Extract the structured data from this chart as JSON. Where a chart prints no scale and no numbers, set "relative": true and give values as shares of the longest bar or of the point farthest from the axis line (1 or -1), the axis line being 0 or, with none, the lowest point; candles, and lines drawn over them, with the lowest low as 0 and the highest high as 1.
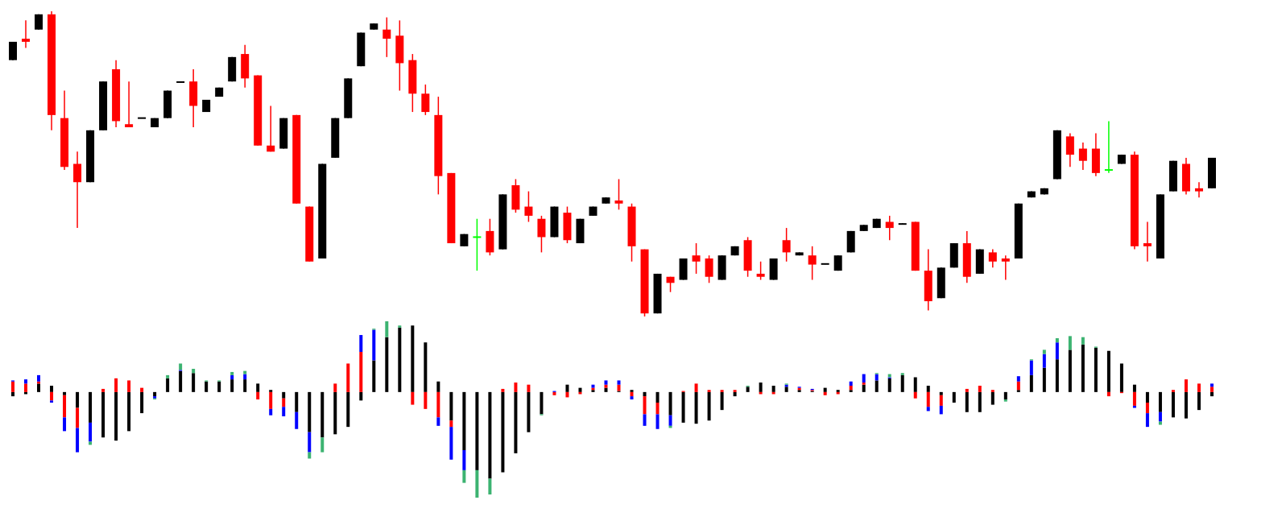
{
  "chart_data": [
    {
      "type": "candlestick",
      "relative": true,
      "categories": [
        null,
        null,
        null,
        null,
        null,
        null,
        null,
        null,
        null,
        null,
        null,
        null,
        null,
        null,
        null,
        null,
        null,
        null,
        null,
        null,
        null,
        null,
        null,
        null,
        null,
        null,
        null,
        null,
        null,
        null,
        null,
        null,
        null,
        null,
        null,
        null,
        null,
        null,
        null,
        null,
        null,
        null,
        null,
        null,
        null,
        null,
        null,
        null,
        null,
        null,
        null,
        null,
        null,
        null,
        null,
        null,
        null,
        null,
        null,
        null,
        null,
        null,
        null,
        null,
        null,
        null,
        null,
        null,
        null,
        null,
        null,
        null,
        null,
        null,
        null,
        null,
        null,
        null,
        null,
        null,
        null,
        null,
        null,
        null,
        null,
        null,
        null,
        null,
        null,
        null,
        null,
        null,
        null,
        null
      ],
      "ohlc": [
        [
          0.84,
          0.9,
          0.84,
          0.9
        ],
        [
          0.91,
          0.97,
          0.88,
          0.9
        ],
        [
          0.94,
          0.99,
          0.94,
          0.99
        ],
        [
          0.99,
          1,
          0.61,
          0.66
        ],
        [
          0.65,
          0.74,
          0.48,
          0.49
        ],
        [
          0.5,
          0.54,
          0.29,
          0.44
        ],
        [
          0.44,
          0.61,
          0.44,
          0.61
        ],
        [
          0.61,
          0.77,
          0.61,
          0.77
        ],
        [
          0.81,
          0.84,
          0.62,
          0.64
        ],
        [
          0.63,
          0.77,
          0.62,
          0.62
        ],
        [
          0.649,
          0.651,
          0.649,
          0.651
        ],
        [
          0.62,
          0.65,
          0.62,
          0.65
        ],
        [
          0.65,
          0.74,
          0.65,
          0.74
        ],
        [
          0.767,
          0.769,
          0.767,
          0.769
        ],
        [
          0.77,
          0.81,
          0.62,
          0.69
        ],
        [
          0.67,
          0.71,
          0.67,
          0.71
        ],
        [
          0.72,
          0.75,
          0.72,
          0.75
        ],
        [
          0.77,
          0.85,
          0.77,
          0.85
        ],
        [
          0.86,
          0.89,
          0.75,
          0.78
        ],
        [
          0.79,
          0.79,
          0.56,
          0.56
        ],
        [
          0.56,
          0.69,
          0.54,
          0.54
        ],
        [
          0.55,
          0.65,
          0.55,
          0.65
        ],
        [
          0.66,
          0.66,
          0.37,
          0.37
        ],
        [
          0.36,
          0.36,
          0.18,
          0.18
        ],
        [
          0.19,
          0.5,
          0.19,
          0.5
        ],
        [
          0.52,
          0.65,
          0.52,
          0.65
        ],
        [
          0.65,
          0.78,
          0.65,
          0.78
        ],
        [
          0.82,
          0.93,
          0.82,
          0.93
        ],
        [
          0.94,
          0.96,
          0.94,
          0.96
        ],
        [
          0.94,
          0.98,
          0.85,
          0.91
        ],
        [
          0.92,
          0.97,
          0.74,
          0.83
        ],
        [
          0.84,
          0.86,
          0.67,
          0.73
        ],
        [
          0.73,
          0.76,
          0.66,
          0.67
        ],
        [
          0.66,
          0.72,
          0.4,
          0.46
        ],
        [
          0.47,
          0.47,
          0.24,
          0.24
        ],
        [
          0.23,
          0.27,
          0.23,
          0.27
        ],
        [
          0.26,
          0.32,
          0.15,
          0.26
        ],
        [
          0.28,
          0.32,
          0.2,
          0.21
        ],
        [
          0.22,
          0.4,
          0.22,
          0.4
        ],
        [
          0.43,
          0.45,
          0.34,
          0.35
        ],
        [
          0.36,
          0.41,
          0.31,
          0.33
        ],
        [
          0.32,
          0.33,
          0.21,
          0.26
        ],
        [
          0.26,
          0.36,
          0.26,
          0.36
        ],
        [
          0.34,
          0.36,
          0.24,
          0.25
        ],
        [
          0.24,
          0.32,
          0.24,
          0.32
        ],
        [
          0.33,
          0.36,
          0.33,
          0.36
        ],
        [
          0.37,
          0.39,
          0.37,
          0.39
        ],
        [
          0.38,
          0.45,
          0.35,
          0.37
        ],
        [
          0.36,
          0.37,
          0.18,
          0.23
        ],
        [
          0.22,
          0.22,
          0,
          0.01
        ],
        [
          0.01,
          0.14,
          0.01,
          0.14
        ],
        [
          0.13,
          0.13,
          0.08,
          0.11
        ],
        [
          0.12,
          0.19,
          0.12,
          0.19
        ],
        [
          0.2,
          0.24,
          0.14,
          0.18
        ],
        [
          0.19,
          0.2,
          0.11,
          0.13
        ],
        [
          0.12,
          0.2,
          0.12,
          0.2
        ],
        [
          0.2,
          0.23,
          0.2,
          0.23
        ],
        [
          0.25,
          0.26,
          0.13,
          0.15
        ],
        [
          0.14,
          0.18,
          0.12,
          0.13
        ],
        [
          0.12,
          0.19,
          0.12,
          0.19
        ],
        [
          0.25,
          0.29,
          0.18,
          0.21
        ],
        [
          0.2,
          0.21,
          0.2,
          0.21
        ],
        [
          0.2,
          0.23,
          0.12,
          0.17
        ],
        [
          0.171,
          0.173,
          0.171,
          0.173
        ],
        [
          0.15,
          0.2,
          0.15,
          0.2
        ],
        [
          0.21,
          0.28,
          0.21,
          0.28
        ],
        [
          0.28,
          0.3,
          0.28,
          0.3
        ],
        [
          0.29,
          0.32,
          0.29,
          0.32
        ],
        [
          0.31,
          0.33,
          0.25,
          0.29
        ],
        [
          0.301,
          0.305,
          0.301,
          0.305
        ],
        [
          0.31,
          0.31,
          0.15,
          0.15
        ],
        [
          0.15,
          0.22,
          0.02,
          0.05
        ],
        [
          0.06,
          0.16,
          0.06,
          0.16
        ],
        [
          0.16,
          0.24,
          0.16,
          0.24
        ],
        [
          0.24,
          0.28,
          0.11,
          0.13
        ],
        [
          0.14,
          0.22,
          0.14,
          0.22
        ],
        [
          0.21,
          0.22,
          0.16,
          0.18
        ],
        [
          0.19,
          0.2,
          0.12,
          0.18
        ],
        [
          0.19,
          0.37,
          0.19,
          0.37
        ],
        [
          0.39,
          0.41,
          0.39,
          0.41
        ],
        [
          0.4,
          0.42,
          0.4,
          0.42
        ],
        [
          0.45,
          0.61,
          0.45,
          0.61
        ],
        [
          0.59,
          0.6,
          0.49,
          0.53
        ],
        [
          0.55,
          0.57,
          0.48,
          0.51
        ],
        [
          0.55,
          0.6,
          0.46,
          0.47
        ],
        [
          0.48,
          0.64,
          0.47,
          0.48
        ],
        [
          0.5,
          0.53,
          0.5,
          0.53
        ],
        [
          0.53,
          0.54,
          0.22,
          0.23
        ],
        [
          0.24,
          0.31,
          0.18,
          0.23
        ],
        [
          0.19,
          0.4,
          0.19,
          0.4
        ],
        [
          0.41,
          0.51,
          0.41,
          0.51
        ],
        [
          0.5,
          0.52,
          0.4,
          0.41
        ],
        [
          0.42,
          0.44,
          0.39,
          0.41
        ],
        [
          0.42,
          0.52,
          0.42,
          0.52
        ]
      ],
      "colors": [
        "#000000",
        "#ff0000",
        "#000000",
        "#ff0000",
        "#ff0000",
        "#ff0000",
        "#000000",
        "#000000",
        "#ff0000",
        "#ff0000",
        "#000000",
        "#000000",
        "#000000",
        "#000000",
        "#ff0000",
        "#000000",
        "#000000",
        "#000000",
        "#ff0000",
        "#ff0000",
        "#ff0000",
        "#000000",
        "#ff0000",
        "#ff0000",
        "#000000",
        "#000000",
        "#000000",
        "#000000",
        "#000000",
        "#ff0000",
        "#ff0000",
        "#ff0000",
        "#ff0000",
        "#ff0000",
        "#ff0000",
        "#000000",
        "#00ff00",
        "#ff0000",
        "#000000",
        "#ff0000",
        "#ff0000",
        "#ff0000",
        "#000000",
        "#ff0000",
        "#000000",
        "#000000",
        "#000000",
        "#ff0000",
        "#ff0000",
        "#ff0000",
        "#000000",
        "#ff0000",
        "#000000",
        "#ff0000",
        "#ff0000",
        "#000000",
        "#000000",
        "#ff0000",
        "#ff0000",
        "#000000",
        "#ff0000",
        "#000000",
        "#ff0000",
        "#000000",
        "#000000",
        "#000000",
        "#000000",
        "#000000",
        "#ff0000",
        "#000000",
        "#ff0000",
        "#ff0000",
        "#000000",
        "#000000",
        "#ff0000",
        "#000000",
        "#ff0000",
        "#ff0000",
        "#000000",
        "#000000",
        "#000000",
        "#000000",
        "#ff0000",
        "#ff0000",
        "#ff0000",
        "#00ff00",
        "#000000",
        "#ff0000",
        "#ff0000",
        "#000000",
        "#000000",
        "#ff0000",
        "#ff0000",
        "#000000"
      ]
    },
    {
      "type": "bar",
      "relative": true,
      "stacked": true,
      "categories": [
        null,
        null,
        null,
        null,
        null,
        null,
        null,
        null,
        null,
        null,
        null,
        null,
        null,
        null,
        null,
        null,
        null,
        null,
        null,
        null,
        null,
        null,
        null,
        null,
        null,
        null,
        null,
        null,
        null,
        null,
        null,
        null,
        null,
        null,
        null,
        null,
        null,
        null,
        null,
        null,
        null,
        null,
        null,
        null,
        null,
        null,
        null,
        null,
        null,
        null,
        null,
        null,
        null,
        null,
        null,
        null,
        null,
        null,
        null,
        null,
        null,
        null,
        null,
        null,
        null,
        null,
        null,
        null,
        null,
        null,
        null,
        null,
        null,
        null,
        null,
        null,
        null,
        null,
        null,
        null,
        null,
        null,
        null,
        null,
        null,
        null,
        null,
        null,
        null,
        null,
        null,
        null,
        null,
        null
      ],
      "series": [
        {
          "color": "#000000",
          "values": [
            -0.04,
            -0.02,
            0.08,
            0.06,
            -0.03,
            -0.15,
            -0.29,
            -0.43,
            -0.46,
            -0.37,
            -0.2,
            -0.04,
            0.13,
            0.2,
            0.18,
            0.1,
            0.1,
            0.12,
            0.12,
            0.08,
            0.02,
            -0.06,
            -0.19,
            -0.38,
            -0.43,
            -0.4,
            -0.33,
            -0.08,
            0.3,
            0.52,
            0.61,
            0.63,
            0.47,
            0.1,
            -0.27,
            -0.55,
            -0.74,
            -0.82,
            -0.76,
            -0.58,
            -0.38,
            -0.21,
            null,
            0.07,
            0.04,
            0.02,
            0.04,
            0.01,
            0.02,
            -0.04,
            -0.1,
            -0.22,
            -0.29,
            -0.3,
            -0.27,
            -0.17,
            -0.04,
            0.05,
            0.09,
            0.06,
            0.05,
            0.02,
            0.01,
            0.04,
            0.02,
            0.02,
            0.07,
            0.11,
            0.13,
            0.16,
            0.14,
            0.06,
            -0.03,
            -0.1,
            -0.19,
            -0.19,
            -0.12,
            -0.07,
            0.02,
            0.16,
            0.23,
            0.31,
            0.4,
            0.45,
            0.42,
            0.39,
            0.27,
            0.07,
            -0.1,
            -0.19,
            -0.24,
            -0.25,
            -0.17,
            -0.04
          ]
        },
        {
          "color": "#ff0000",
          "values": [
            0.1,
            0.08,
            0.02,
            -0.08,
            -0.21,
            -0.19,
            null,
            0.03,
            0.13,
            0.11,
            0.04,
            null,
            null,
            null,
            null,
            null,
            null,
            null,
            null,
            -0.07,
            -0.16,
            -0.08,
            null,
            null,
            null,
            0.08,
            0.27,
            0.38,
            null,
            null,
            null,
            -0.12,
            -0.16,
            -0.24,
            -0.06,
            null,
            null,
            null,
            0.03,
            0.09,
            0.07,
            null,
            -0.03,
            -0.05,
            -0.02,
            0.02,
            0.03,
            0.06,
            -0.04,
            -0.17,
            -0.11,
            null,
            0.01,
            0.08,
            0.02,
            0.02,
            0.02,
            null,
            -0.02,
            -0.02,
            null,
            0.02,
            0.01,
            -0.03,
            -0.02,
            0.04,
            0.02,
            null,
            null,
            null,
            -0.06,
            -0.14,
            -0.1,
            null,
            0.03,
            0.06,
            0.02,
            null,
            0.08,
            null,
            null,
            null,
            null,
            null,
            null,
            -0.04,
            -0.01,
            -0.13,
            -0.1,
            null,
            0.02,
            0.12,
            0.08,
            0.05
          ]
        },
        {
          "color": "#0000ff",
          "values": [
            0.01,
            0.04,
            0.06,
            -0.02,
            -0.13,
            -0.23,
            -0.18,
            null,
            null,
            null,
            null,
            -0.02,
            null,
            0.01,
            null,
            null,
            null,
            0.04,
            0.05,
            null,
            -0.06,
            -0.09,
            -0.16,
            -0.19,
            null,
            null,
            null,
            0.16,
            0.29,
            null,
            null,
            null,
            null,
            -0.08,
            -0.31,
            -0.19,
            null,
            null,
            null,
            null,
            null,
            null,
            0.01,
            null,
            null,
            0.03,
            0.04,
            0.04,
            -0.03,
            -0.11,
            -0.14,
            -0.1,
            null,
            null,
            null,
            null,
            null,
            null,
            null,
            null,
            0.02,
            0.01,
            0.01,
            null,
            null,
            0.04,
            0.08,
            0.06,
            0.01,
            null,
            null,
            -0.04,
            -0.08,
            null,
            null,
            null,
            null,
            null,
            0.05,
            0.14,
            0.13,
            0.16,
            null,
            null,
            null,
            null,
            null,
            -0.02,
            -0.13,
            -0.09,
            null,
            null,
            null,
            0.03
          ]
        },
        {
          "color": "#3cb371",
          "values": [
            null,
            null,
            null,
            null,
            null,
            null,
            -0.03,
            null,
            null,
            null,
            null,
            -0.01,
            0.03,
            0.06,
            0.04,
            0.01,
            0.01,
            0.03,
            0.03,
            null,
            null,
            null,
            null,
            -0.06,
            -0.14,
            null,
            null,
            null,
            0.01,
            0.15,
            0.02,
            null,
            null,
            null,
            null,
            -0.12,
            -0.26,
            -0.15,
            null,
            null,
            null,
            -0.01,
            null,
            null,
            null,
            null,
            null,
            null,
            null,
            null,
            null,
            -0.02,
            null,
            null,
            null,
            null,
            null,
            0.01,
            null,
            null,
            0.01,
            null,
            null,
            null,
            null,
            null,
            null,
            0.01,
            0.03,
            0.02,
            null,
            null,
            null,
            null,
            null,
            null,
            null,
            -0.02,
            null,
            0.01,
            0.04,
            0.04,
            0.13,
            0.07,
            0.01,
            null,
            null,
            null,
            null,
            -0.03,
            null,
            null,
            null,
            null
          ]
        }
      ]
    }
  ]
}
